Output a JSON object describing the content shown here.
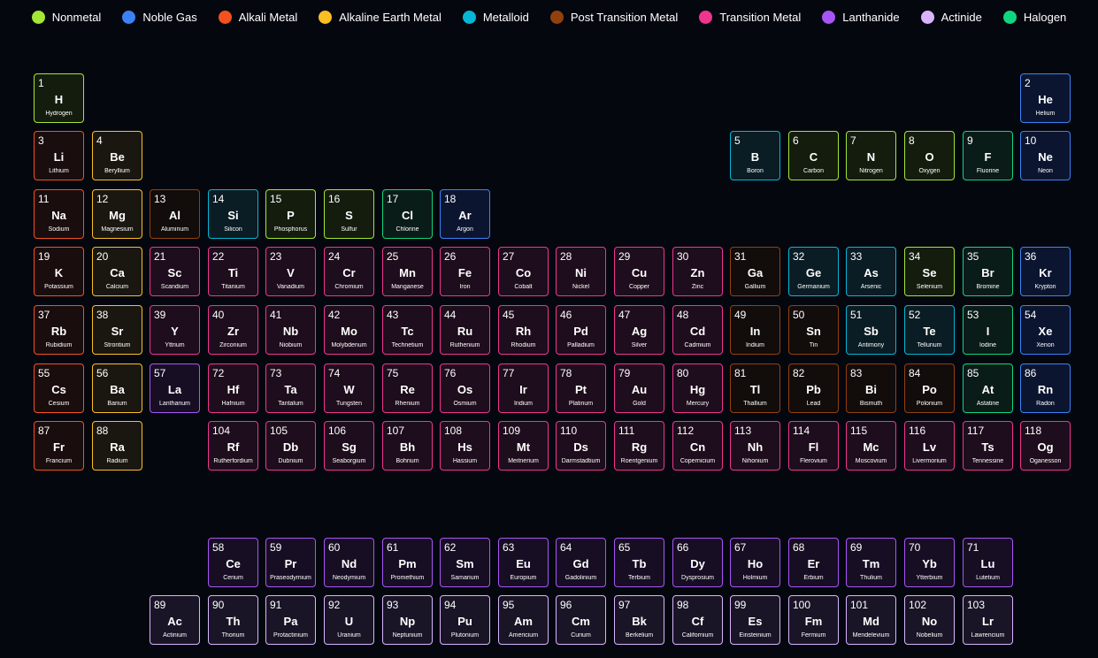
{
  "legend": [
    {
      "key": "nonmetal",
      "label": "Nonmetal",
      "color": "#a3e635"
    },
    {
      "key": "noble",
      "label": "Noble Gas",
      "color": "#3b82f6"
    },
    {
      "key": "alkali",
      "label": "Alkali Metal",
      "color": "#f4511e"
    },
    {
      "key": "alkaline",
      "label": "Alkaline Earth Metal",
      "color": "#fbbf24"
    },
    {
      "key": "metalloid",
      "label": "Metalloid",
      "color": "#06b6d4"
    },
    {
      "key": "post",
      "label": "Post Transition Metal",
      "color": "#92400e"
    },
    {
      "key": "transition",
      "label": "Transition Metal",
      "color": "#f0358f"
    },
    {
      "key": "lanthanide",
      "label": "Lanthanide",
      "color": "#a855f7"
    },
    {
      "key": "actinide",
      "label": "Actinide",
      "color": "#d8b4fe"
    },
    {
      "key": "halogen",
      "label": "Halogen",
      "color": "#10d680"
    }
  ],
  "styles": {
    "nonmetal": {
      "border": "#a3e635",
      "bg": "#141c0e"
    },
    "noble": {
      "border": "#3b82f6",
      "bg": "#0c1530"
    },
    "alkali": {
      "border": "#f4511e",
      "bg": "#1a0d0e"
    },
    "alkaline": {
      "border": "#fbbf24",
      "bg": "#1a1710"
    },
    "metalloid": {
      "border": "#06b6d4",
      "bg": "#0a1c24"
    },
    "post": {
      "border": "#92400e",
      "bg": "#120c0b"
    },
    "transition": {
      "border": "#f0358f",
      "bg": "#1e0d1c"
    },
    "lanthanide": {
      "border": "#a855f7",
      "bg": "#170e24"
    },
    "actinide": {
      "border": "#d8b4fe",
      "bg": "#1a1526"
    },
    "halogen": {
      "border": "#10d680",
      "bg": "#0a1c18"
    }
  },
  "elements": [
    {
      "n": "1",
      "s": "H",
      "name": "Hydrogen",
      "c": "nonmetal",
      "col": 1,
      "row": 1
    },
    {
      "n": "2",
      "s": "He",
      "name": "Helium",
      "c": "noble",
      "col": 18,
      "row": 1
    },
    {
      "n": "3",
      "s": "Li",
      "name": "Lithium",
      "c": "alkali",
      "col": 1,
      "row": 2
    },
    {
      "n": "4",
      "s": "Be",
      "name": "Beryllium",
      "c": "alkaline",
      "col": 2,
      "row": 2
    },
    {
      "n": "5",
      "s": "B",
      "name": "Boron",
      "c": "metalloid",
      "col": 13,
      "row": 2
    },
    {
      "n": "6",
      "s": "C",
      "name": "Carbon",
      "c": "nonmetal",
      "col": 14,
      "row": 2
    },
    {
      "n": "7",
      "s": "N",
      "name": "Nitrogen",
      "c": "nonmetal",
      "col": 15,
      "row": 2
    },
    {
      "n": "8",
      "s": "O",
      "name": "Oxygen",
      "c": "nonmetal",
      "col": 16,
      "row": 2
    },
    {
      "n": "9",
      "s": "F",
      "name": "Fluorine",
      "c": "halogen",
      "col": 17,
      "row": 2
    },
    {
      "n": "10",
      "s": "Ne",
      "name": "Neon",
      "c": "noble",
      "col": 18,
      "row": 2
    },
    {
      "n": "11",
      "s": "Na",
      "name": "Sodium",
      "c": "alkali",
      "col": 1,
      "row": 3
    },
    {
      "n": "12",
      "s": "Mg",
      "name": "Magnesium",
      "c": "alkaline",
      "col": 2,
      "row": 3
    },
    {
      "n": "13",
      "s": "Al",
      "name": "Aluminum",
      "c": "post",
      "col": 3,
      "row": 3
    },
    {
      "n": "14",
      "s": "Si",
      "name": "Silicon",
      "c": "metalloid",
      "col": 4,
      "row": 3
    },
    {
      "n": "15",
      "s": "P",
      "name": "Phosphorus",
      "c": "nonmetal",
      "col": 5,
      "row": 3
    },
    {
      "n": "16",
      "s": "S",
      "name": "Sulfur",
      "c": "nonmetal",
      "col": 6,
      "row": 3
    },
    {
      "n": "17",
      "s": "Cl",
      "name": "Chlorine",
      "c": "halogen",
      "col": 7,
      "row": 3
    },
    {
      "n": "18",
      "s": "Ar",
      "name": "Argon",
      "c": "noble",
      "col": 8,
      "row": 3
    },
    {
      "n": "19",
      "s": "K",
      "name": "Potassium",
      "c": "alkali",
      "col": 1,
      "row": 4
    },
    {
      "n": "20",
      "s": "Ca",
      "name": "Calcium",
      "c": "alkaline",
      "col": 2,
      "row": 4
    },
    {
      "n": "21",
      "s": "Sc",
      "name": "Scandium",
      "c": "transition",
      "col": 3,
      "row": 4
    },
    {
      "n": "22",
      "s": "Ti",
      "name": "Titanium",
      "c": "transition",
      "col": 4,
      "row": 4
    },
    {
      "n": "23",
      "s": "V",
      "name": "Vanadium",
      "c": "transition",
      "col": 5,
      "row": 4
    },
    {
      "n": "24",
      "s": "Cr",
      "name": "Chromium",
      "c": "transition",
      "col": 6,
      "row": 4
    },
    {
      "n": "25",
      "s": "Mn",
      "name": "Manganese",
      "c": "transition",
      "col": 7,
      "row": 4
    },
    {
      "n": "26",
      "s": "Fe",
      "name": "Iron",
      "c": "transition",
      "col": 8,
      "row": 4
    },
    {
      "n": "27",
      "s": "Co",
      "name": "Cobalt",
      "c": "transition",
      "col": 9,
      "row": 4
    },
    {
      "n": "28",
      "s": "Ni",
      "name": "Nickel",
      "c": "transition",
      "col": 10,
      "row": 4
    },
    {
      "n": "29",
      "s": "Cu",
      "name": "Copper",
      "c": "transition",
      "col": 11,
      "row": 4
    },
    {
      "n": "30",
      "s": "Zn",
      "name": "Zinc",
      "c": "transition",
      "col": 12,
      "row": 4
    },
    {
      "n": "31",
      "s": "Ga",
      "name": "Gallium",
      "c": "post",
      "col": 13,
      "row": 4
    },
    {
      "n": "32",
      "s": "Ge",
      "name": "Germanium",
      "c": "metalloid",
      "col": 14,
      "row": 4
    },
    {
      "n": "33",
      "s": "As",
      "name": "Arsenic",
      "c": "metalloid",
      "col": 15,
      "row": 4
    },
    {
      "n": "34",
      "s": "Se",
      "name": "Selenium",
      "c": "nonmetal",
      "col": 16,
      "row": 4
    },
    {
      "n": "35",
      "s": "Br",
      "name": "Bromine",
      "c": "halogen",
      "col": 17,
      "row": 4
    },
    {
      "n": "36",
      "s": "Kr",
      "name": "Krypton",
      "c": "noble",
      "col": 18,
      "row": 4
    },
    {
      "n": "37",
      "s": "Rb",
      "name": "Rubidium",
      "c": "alkali",
      "col": 1,
      "row": 5
    },
    {
      "n": "38",
      "s": "Sr",
      "name": "Strontium",
      "c": "alkaline",
      "col": 2,
      "row": 5
    },
    {
      "n": "39",
      "s": "Y",
      "name": "Yttrium",
      "c": "transition",
      "col": 3,
      "row": 5
    },
    {
      "n": "40",
      "s": "Zr",
      "name": "Zirconium",
      "c": "transition",
      "col": 4,
      "row": 5
    },
    {
      "n": "41",
      "s": "Nb",
      "name": "Niobium",
      "c": "transition",
      "col": 5,
      "row": 5
    },
    {
      "n": "42",
      "s": "Mo",
      "name": "Molybdenum",
      "c": "transition",
      "col": 6,
      "row": 5
    },
    {
      "n": "43",
      "s": "Tc",
      "name": "Technetium",
      "c": "transition",
      "col": 7,
      "row": 5
    },
    {
      "n": "44",
      "s": "Ru",
      "name": "Ruthenium",
      "c": "transition",
      "col": 8,
      "row": 5
    },
    {
      "n": "45",
      "s": "Rh",
      "name": "Rhodium",
      "c": "transition",
      "col": 9,
      "row": 5
    },
    {
      "n": "46",
      "s": "Pd",
      "name": "Palladium",
      "c": "transition",
      "col": 10,
      "row": 5
    },
    {
      "n": "47",
      "s": "Ag",
      "name": "Silver",
      "c": "transition",
      "col": 11,
      "row": 5
    },
    {
      "n": "48",
      "s": "Cd",
      "name": "Cadmium",
      "c": "transition",
      "col": 12,
      "row": 5
    },
    {
      "n": "49",
      "s": "In",
      "name": "Indium",
      "c": "post",
      "col": 13,
      "row": 5
    },
    {
      "n": "50",
      "s": "Sn",
      "name": "Tin",
      "c": "post",
      "col": 14,
      "row": 5
    },
    {
      "n": "51",
      "s": "Sb",
      "name": "Antimony",
      "c": "metalloid",
      "col": 15,
      "row": 5
    },
    {
      "n": "52",
      "s": "Te",
      "name": "Tellurium",
      "c": "metalloid",
      "col": 16,
      "row": 5
    },
    {
      "n": "53",
      "s": "I",
      "name": "Iodine",
      "c": "halogen",
      "col": 17,
      "row": 5
    },
    {
      "n": "54",
      "s": "Xe",
      "name": "Xenon",
      "c": "noble",
      "col": 18,
      "row": 5
    },
    {
      "n": "55",
      "s": "Cs",
      "name": "Cesium",
      "c": "alkali",
      "col": 1,
      "row": 6
    },
    {
      "n": "56",
      "s": "Ba",
      "name": "Barium",
      "c": "alkaline",
      "col": 2,
      "row": 6
    },
    {
      "n": "57",
      "s": "La",
      "name": "Lanthanum",
      "c": "lanthanide",
      "col": 3,
      "row": 6
    },
    {
      "n": "72",
      "s": "Hf",
      "name": "Hafnium",
      "c": "transition",
      "col": 4,
      "row": 6
    },
    {
      "n": "73",
      "s": "Ta",
      "name": "Tantalum",
      "c": "transition",
      "col": 5,
      "row": 6
    },
    {
      "n": "74",
      "s": "W",
      "name": "Tungsten",
      "c": "transition",
      "col": 6,
      "row": 6
    },
    {
      "n": "75",
      "s": "Re",
      "name": "Rhenium",
      "c": "transition",
      "col": 7,
      "row": 6
    },
    {
      "n": "76",
      "s": "Os",
      "name": "Osmium",
      "c": "transition",
      "col": 8,
      "row": 6
    },
    {
      "n": "77",
      "s": "Ir",
      "name": "Iridium",
      "c": "transition",
      "col": 9,
      "row": 6
    },
    {
      "n": "78",
      "s": "Pt",
      "name": "Platinum",
      "c": "transition",
      "col": 10,
      "row": 6
    },
    {
      "n": "79",
      "s": "Au",
      "name": "Gold",
      "c": "transition",
      "col": 11,
      "row": 6
    },
    {
      "n": "80",
      "s": "Hg",
      "name": "Mercury",
      "c": "transition",
      "col": 12,
      "row": 6
    },
    {
      "n": "81",
      "s": "Tl",
      "name": "Thallium",
      "c": "post",
      "col": 13,
      "row": 6
    },
    {
      "n": "82",
      "s": "Pb",
      "name": "Lead",
      "c": "post",
      "col": 14,
      "row": 6
    },
    {
      "n": "83",
      "s": "Bi",
      "name": "Bismuth",
      "c": "post",
      "col": 15,
      "row": 6
    },
    {
      "n": "84",
      "s": "Po",
      "name": "Polonium",
      "c": "post",
      "col": 16,
      "row": 6
    },
    {
      "n": "85",
      "s": "At",
      "name": "Astatine",
      "c": "halogen",
      "col": 17,
      "row": 6
    },
    {
      "n": "86",
      "s": "Rn",
      "name": "Radon",
      "c": "noble",
      "col": 18,
      "row": 6
    },
    {
      "n": "87",
      "s": "Fr",
      "name": "Francium",
      "c": "alkali",
      "col": 1,
      "row": 7
    },
    {
      "n": "88",
      "s": "Ra",
      "name": "Radium",
      "c": "alkaline",
      "col": 2,
      "row": 7
    },
    {
      "n": "104",
      "s": "Rf",
      "name": "Rutherfordium",
      "c": "transition",
      "col": 4,
      "row": 7
    },
    {
      "n": "105",
      "s": "Db",
      "name": "Dubnium",
      "c": "transition",
      "col": 5,
      "row": 7
    },
    {
      "n": "106",
      "s": "Sg",
      "name": "Seaborgium",
      "c": "transition",
      "col": 6,
      "row": 7
    },
    {
      "n": "107",
      "s": "Bh",
      "name": "Bohrium",
      "c": "transition",
      "col": 7,
      "row": 7
    },
    {
      "n": "108",
      "s": "Hs",
      "name": "Hassium",
      "c": "transition",
      "col": 8,
      "row": 7
    },
    {
      "n": "109",
      "s": "Mt",
      "name": "Meitnerium",
      "c": "transition",
      "col": 9,
      "row": 7
    },
    {
      "n": "110",
      "s": "Ds",
      "name": "Darmstadtium",
      "c": "transition",
      "col": 10,
      "row": 7
    },
    {
      "n": "111",
      "s": "Rg",
      "name": "Roentgenium",
      "c": "transition",
      "col": 11,
      "row": 7
    },
    {
      "n": "112",
      "s": "Cn",
      "name": "Copernicium",
      "c": "transition",
      "col": 12,
      "row": 7
    },
    {
      "n": "113",
      "s": "Nh",
      "name": "Nihonium",
      "c": "transition",
      "col": 13,
      "row": 7
    },
    {
      "n": "114",
      "s": "Fl",
      "name": "Flerovium",
      "c": "transition",
      "col": 14,
      "row": 7
    },
    {
      "n": "115",
      "s": "Mc",
      "name": "Moscovium",
      "c": "transition",
      "col": 15,
      "row": 7
    },
    {
      "n": "116",
      "s": "Lv",
      "name": "Livermorium",
      "c": "transition",
      "col": 16,
      "row": 7
    },
    {
      "n": "117",
      "s": "Ts",
      "name": "Tennessine",
      "c": "transition",
      "col": 17,
      "row": 7
    },
    {
      "n": "118",
      "s": "Og",
      "name": "Oganesson",
      "c": "transition",
      "col": 18,
      "row": 7
    },
    {
      "n": "58",
      "s": "Ce",
      "name": "Cerium",
      "c": "lanthanide",
      "col": 4,
      "row": 9
    },
    {
      "n": "59",
      "s": "Pr",
      "name": "Praseodymium",
      "c": "lanthanide",
      "col": 5,
      "row": 9
    },
    {
      "n": "60",
      "s": "Nd",
      "name": "Neodymium",
      "c": "lanthanide",
      "col": 6,
      "row": 9
    },
    {
      "n": "61",
      "s": "Pm",
      "name": "Promethium",
      "c": "lanthanide",
      "col": 7,
      "row": 9
    },
    {
      "n": "62",
      "s": "Sm",
      "name": "Samarium",
      "c": "lanthanide",
      "col": 8,
      "row": 9
    },
    {
      "n": "63",
      "s": "Eu",
      "name": "Europium",
      "c": "lanthanide",
      "col": 9,
      "row": 9
    },
    {
      "n": "64",
      "s": "Gd",
      "name": "Gadolinium",
      "c": "lanthanide",
      "col": 10,
      "row": 9
    },
    {
      "n": "65",
      "s": "Tb",
      "name": "Terbium",
      "c": "lanthanide",
      "col": 11,
      "row": 9
    },
    {
      "n": "66",
      "s": "Dy",
      "name": "Dysprosium",
      "c": "lanthanide",
      "col": 12,
      "row": 9
    },
    {
      "n": "67",
      "s": "Ho",
      "name": "Holmium",
      "c": "lanthanide",
      "col": 13,
      "row": 9
    },
    {
      "n": "68",
      "s": "Er",
      "name": "Erbium",
      "c": "lanthanide",
      "col": 14,
      "row": 9
    },
    {
      "n": "69",
      "s": "Tm",
      "name": "Thulium",
      "c": "lanthanide",
      "col": 15,
      "row": 9
    },
    {
      "n": "70",
      "s": "Yb",
      "name": "Ytterbium",
      "c": "lanthanide",
      "col": 16,
      "row": 9
    },
    {
      "n": "71",
      "s": "Lu",
      "name": "Lutetium",
      "c": "lanthanide",
      "col": 17,
      "row": 9
    },
    {
      "n": "89",
      "s": "Ac",
      "name": "Actinium",
      "c": "actinide",
      "col": 3,
      "row": 10
    },
    {
      "n": "90",
      "s": "Th",
      "name": "Thorium",
      "c": "actinide",
      "col": 4,
      "row": 10
    },
    {
      "n": "91",
      "s": "Pa",
      "name": "Protactinium",
      "c": "actinide",
      "col": 5,
      "row": 10
    },
    {
      "n": "92",
      "s": "U",
      "name": "Uranium",
      "c": "actinide",
      "col": 6,
      "row": 10
    },
    {
      "n": "93",
      "s": "Np",
      "name": "Neptunium",
      "c": "actinide",
      "col": 7,
      "row": 10
    },
    {
      "n": "94",
      "s": "Pu",
      "name": "Plutonium",
      "c": "actinide",
      "col": 8,
      "row": 10
    },
    {
      "n": "95",
      "s": "Am",
      "name": "Americium",
      "c": "actinide",
      "col": 9,
      "row": 10
    },
    {
      "n": "96",
      "s": "Cm",
      "name": "Curium",
      "c": "actinide",
      "col": 10,
      "row": 10
    },
    {
      "n": "97",
      "s": "Bk",
      "name": "Berkelium",
      "c": "actinide",
      "col": 11,
      "row": 10
    },
    {
      "n": "98",
      "s": "Cf",
      "name": "Californium",
      "c": "actinide",
      "col": 12,
      "row": 10
    },
    {
      "n": "99",
      "s": "Es",
      "name": "Einsteinium",
      "c": "actinide",
      "col": 13,
      "row": 10
    },
    {
      "n": "100",
      "s": "Fm",
      "name": "Fermium",
      "c": "actinide",
      "col": 14,
      "row": 10
    },
    {
      "n": "101",
      "s": "Md",
      "name": "Mendelevium",
      "c": "actinide",
      "col": 15,
      "row": 10
    },
    {
      "n": "102",
      "s": "No",
      "name": "Nobelium",
      "c": "actinide",
      "col": 16,
      "row": 10
    },
    {
      "n": "103",
      "s": "Lr",
      "name": "Lawrencium",
      "c": "actinide",
      "col": 17,
      "row": 10
    }
  ]
}
